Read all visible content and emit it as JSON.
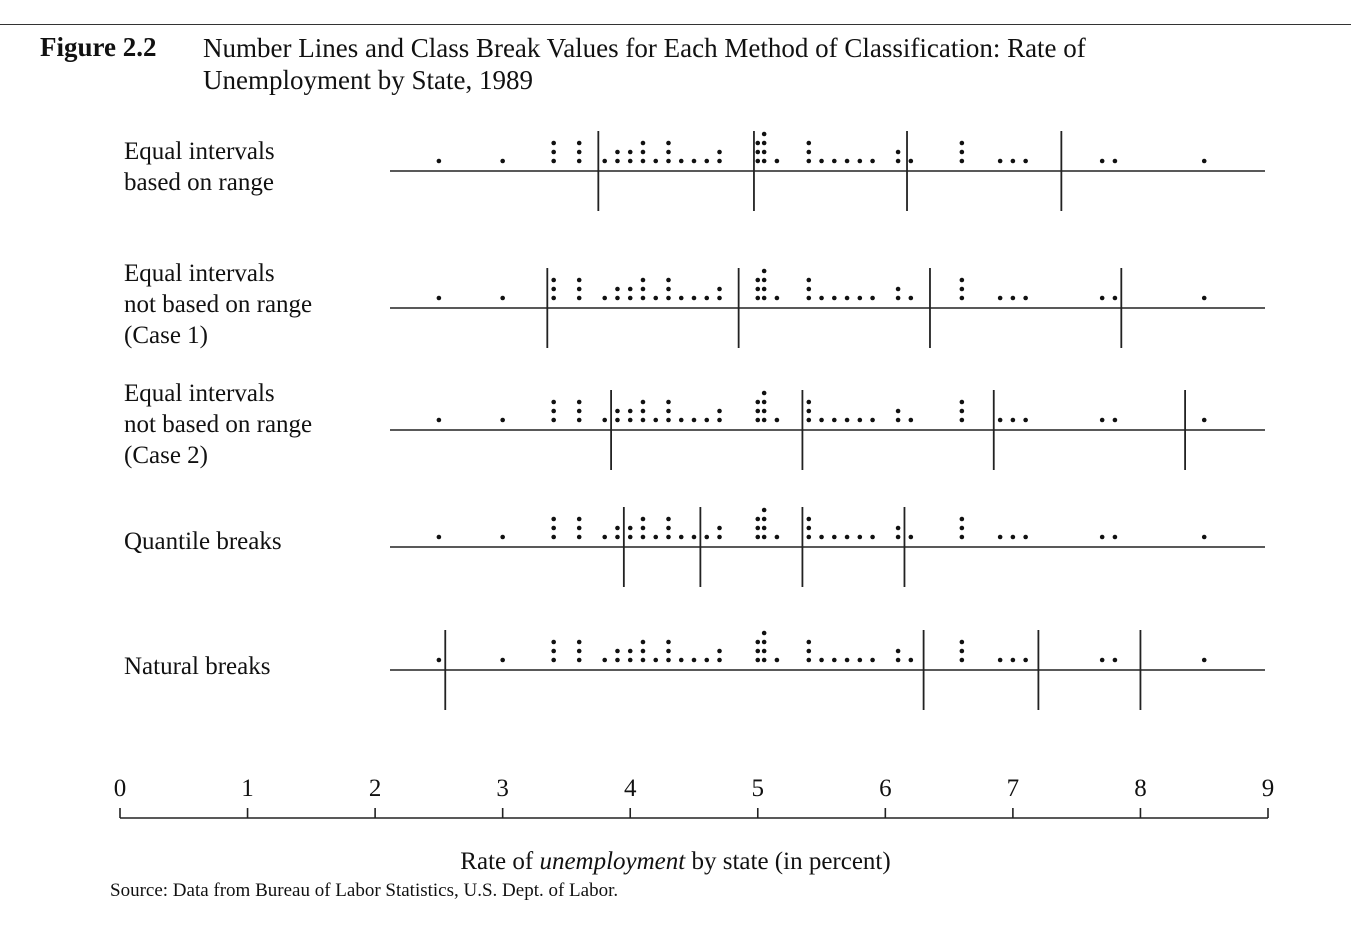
{
  "figure": {
    "number": "Figure 2.2",
    "title": "Number Lines and Class Break Values for Each Method of Classification: Rate of Unemployment by State, 1989",
    "source": "Source: Data from Bureau of Labor Statistics, U.S. Dept. of Labor."
  },
  "chart_data": {
    "type": "scatter",
    "xlabel": {
      "prefix": "Rate of ",
      "emph": "unemployment",
      "suffix": " by state (in percent)"
    },
    "xlim": [
      0,
      9
    ],
    "x_ticks": [
      0,
      1,
      2,
      3,
      4,
      5,
      6,
      7,
      8,
      9
    ],
    "x_tick_labels": [
      "0",
      "1",
      "2",
      "3",
      "4",
      "5",
      "6",
      "7",
      "8",
      "9"
    ],
    "grid": false,
    "dot_color": "#111111",
    "data_points": [
      {
        "x": 2.5,
        "count": 1
      },
      {
        "x": 3.0,
        "count": 1
      },
      {
        "x": 3.4,
        "count": 3
      },
      {
        "x": 3.6,
        "count": 3
      },
      {
        "x": 3.8,
        "count": 1
      },
      {
        "x": 3.9,
        "count": 2
      },
      {
        "x": 4.0,
        "count": 2
      },
      {
        "x": 4.1,
        "count": 3
      },
      {
        "x": 4.2,
        "count": 1
      },
      {
        "x": 4.3,
        "count": 3
      },
      {
        "x": 4.4,
        "count": 1
      },
      {
        "x": 4.5,
        "count": 1
      },
      {
        "x": 4.6,
        "count": 1
      },
      {
        "x": 4.7,
        "count": 2
      },
      {
        "x": 5.0,
        "count": 3
      },
      {
        "x": 5.05,
        "count": 4
      },
      {
        "x": 5.15,
        "count": 1
      },
      {
        "x": 5.4,
        "count": 3
      },
      {
        "x": 5.5,
        "count": 1
      },
      {
        "x": 5.6,
        "count": 1
      },
      {
        "x": 5.7,
        "count": 1
      },
      {
        "x": 5.8,
        "count": 1
      },
      {
        "x": 5.9,
        "count": 1
      },
      {
        "x": 6.1,
        "count": 2
      },
      {
        "x": 6.2,
        "count": 1
      },
      {
        "x": 6.6,
        "count": 3
      },
      {
        "x": 6.9,
        "count": 1
      },
      {
        "x": 7.0,
        "count": 1
      },
      {
        "x": 7.1,
        "count": 1
      },
      {
        "x": 7.7,
        "count": 1
      },
      {
        "x": 7.8,
        "count": 1
      },
      {
        "x": 8.5,
        "count": 1
      }
    ],
    "rows": [
      {
        "label": [
          "Equal intervals",
          "based on range"
        ],
        "breaks": [
          3.75,
          4.97,
          6.17,
          7.38
        ]
      },
      {
        "label": [
          "Equal intervals",
          "not based on range",
          "(Case 1)"
        ],
        "breaks": [
          3.35,
          4.85,
          6.35,
          7.85
        ]
      },
      {
        "label": [
          "Equal intervals",
          "not based on range",
          "(Case 2)"
        ],
        "breaks": [
          3.85,
          5.35,
          6.85,
          8.35
        ]
      },
      {
        "label": [
          "Quantile breaks"
        ],
        "breaks": [
          3.95,
          4.55,
          5.35,
          6.15
        ]
      },
      {
        "label": [
          "Natural breaks"
        ],
        "breaks": [
          2.55,
          6.3,
          7.2,
          8.0
        ]
      }
    ]
  }
}
